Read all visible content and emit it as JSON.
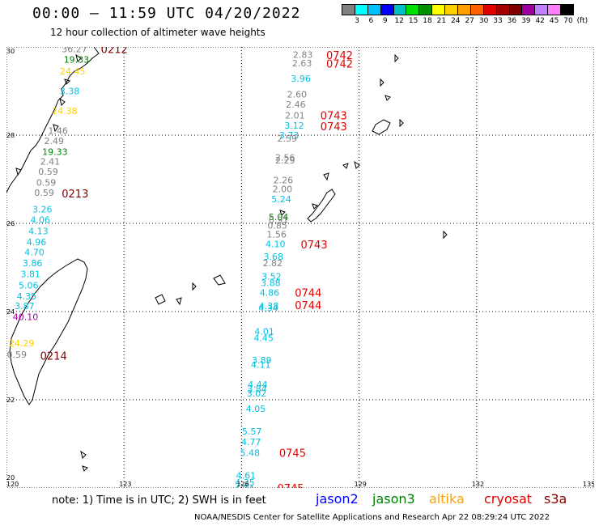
{
  "header": {
    "title": "00:00 – 11:59 UTC 04/20/2022",
    "subtitle": "12 hour collection of altimeter wave heights"
  },
  "colorbar": {
    "colors": [
      "#808080",
      "#00ffff",
      "#00bfff",
      "#0000ff",
      "#00c0c0",
      "#00e000",
      "#009000",
      "#ffff00",
      "#ffd000",
      "#ffa000",
      "#ff6000",
      "#e00000",
      "#a00000",
      "#800000",
      "#a000a0",
      "#c080ff",
      "#ff80ff",
      "#000000"
    ],
    "labels": [
      "3",
      "6",
      "9",
      "12",
      "15",
      "18",
      "21",
      "24",
      "27",
      "30",
      "33",
      "36",
      "39",
      "42",
      "45",
      "70",
      "(ft)"
    ]
  },
  "axes": {
    "lon_labels": [
      "120",
      "123",
      "126",
      "129",
      "132",
      "135"
    ],
    "lat_labels": [
      "30",
      "28",
      "26",
      "24",
      "22",
      "20"
    ]
  },
  "observations": [
    {
      "text": "36.27",
      "lon": 121.7,
      "lat": 29.95,
      "color": "#808080"
    },
    {
      "text": "19.33",
      "lon": 121.75,
      "lat": 29.72,
      "color": "#008000"
    },
    {
      "text": "24.45",
      "lon": 121.65,
      "lat": 29.45,
      "color": "#ffd000"
    },
    {
      "text": "3.38",
      "lon": 121.65,
      "lat": 29.0,
      "color": "#00c0e0"
    },
    {
      "text": "24.38",
      "lon": 121.45,
      "lat": 28.55,
      "color": "#ffd000"
    },
    {
      "text": "1.46",
      "lon": 121.35,
      "lat": 28.1,
      "color": "#808080"
    },
    {
      "text": "2.49",
      "lon": 121.25,
      "lat": 27.87,
      "color": "#808080"
    },
    {
      "text": "19.33",
      "lon": 121.2,
      "lat": 27.62,
      "color": "#008000"
    },
    {
      "text": "2.41",
      "lon": 121.15,
      "lat": 27.4,
      "color": "#808080"
    },
    {
      "text": "0.59",
      "lon": 121.1,
      "lat": 27.17,
      "color": "#808080"
    },
    {
      "text": "0.59",
      "lon": 121.05,
      "lat": 26.93,
      "color": "#808080"
    },
    {
      "text": "0.59",
      "lon": 121.0,
      "lat": 26.7,
      "color": "#808080"
    },
    {
      "text": "3.26",
      "lon": 120.95,
      "lat": 26.32,
      "color": "#00c0e0"
    },
    {
      "text": "4.06",
      "lon": 120.9,
      "lat": 26.08,
      "color": "#00c0e0"
    },
    {
      "text": "4.13",
      "lon": 120.85,
      "lat": 25.83,
      "color": "#00c0e0"
    },
    {
      "text": "4.96",
      "lon": 120.8,
      "lat": 25.58,
      "color": "#00c0e0"
    },
    {
      "text": "4.70",
      "lon": 120.75,
      "lat": 25.35,
      "color": "#00c0e0"
    },
    {
      "text": "3.86",
      "lon": 120.7,
      "lat": 25.1,
      "color": "#00c0e0"
    },
    {
      "text": "3.81",
      "lon": 120.65,
      "lat": 24.85,
      "color": "#00c0e0"
    },
    {
      "text": "5.06",
      "lon": 120.6,
      "lat": 24.6,
      "color": "#00c0e0"
    },
    {
      "text": "4.35",
      "lon": 120.55,
      "lat": 24.35,
      "color": "#00c0e0"
    },
    {
      "text": "3.87",
      "lon": 120.5,
      "lat": 24.13,
      "color": "#00c0e0"
    },
    {
      "text": "40.10",
      "lon": 120.45,
      "lat": 23.88,
      "color": "#a000a0"
    },
    {
      "text": "24.29",
      "lon": 120.35,
      "lat": 23.28,
      "color": "#ffd000"
    },
    {
      "text": "0.59",
      "lon": 120.3,
      "lat": 23.03,
      "color": "#808080"
    },
    {
      "text": "2.83",
      "lon": 127.6,
      "lat": 29.83,
      "color": "#808080"
    },
    {
      "text": "2.63",
      "lon": 127.58,
      "lat": 29.63,
      "color": "#808080"
    },
    {
      "text": "3.96",
      "lon": 127.55,
      "lat": 29.28,
      "color": "#00c0e0"
    },
    {
      "text": "2.60",
      "lon": 127.45,
      "lat": 28.93,
      "color": "#808080"
    },
    {
      "text": "2.46",
      "lon": 127.42,
      "lat": 28.7,
      "color": "#808080"
    },
    {
      "text": "2.01",
      "lon": 127.4,
      "lat": 28.45,
      "color": "#808080"
    },
    {
      "text": "3.12",
      "lon": 127.38,
      "lat": 28.22,
      "color": "#00c0e0"
    },
    {
      "text": "3.73",
      "lon": 127.25,
      "lat": 28.0,
      "color": "#00c0e0"
    },
    {
      "text": "2.59",
      "lon": 127.2,
      "lat": 27.93,
      "color": "#808080"
    },
    {
      "text": "2.56",
      "lon": 127.15,
      "lat": 27.5,
      "color": "#808080"
    },
    {
      "text": "2.29",
      "lon": 127.15,
      "lat": 27.43,
      "color": "#808080"
    },
    {
      "text": "2.26",
      "lon": 127.1,
      "lat": 26.98,
      "color": "#808080"
    },
    {
      "text": "2.00",
      "lon": 127.08,
      "lat": 26.78,
      "color": "#808080"
    },
    {
      "text": "5.24",
      "lon": 127.05,
      "lat": 26.55,
      "color": "#00c0e0"
    },
    {
      "text": "5.04",
      "lon": 126.98,
      "lat": 26.15,
      "color": "#008000"
    },
    {
      "text": "0.91",
      "lon": 126.98,
      "lat": 26.08,
      "color": "#808080"
    },
    {
      "text": "0.85",
      "lon": 126.95,
      "lat": 25.95,
      "color": "#808080"
    },
    {
      "text": "1.56",
      "lon": 126.93,
      "lat": 25.75,
      "color": "#808080"
    },
    {
      "text": "4.10",
      "lon": 126.9,
      "lat": 25.53,
      "color": "#00c0e0"
    },
    {
      "text": "3.68",
      "lon": 126.85,
      "lat": 25.25,
      "color": "#00c0e0"
    },
    {
      "text": "2.82",
      "lon": 126.83,
      "lat": 25.1,
      "color": "#808080"
    },
    {
      "text": "3.52",
      "lon": 126.8,
      "lat": 24.8,
      "color": "#00c0e0"
    },
    {
      "text": "3.88",
      "lon": 126.78,
      "lat": 24.65,
      "color": "#00c0e0"
    },
    {
      "text": "4.86",
      "lon": 126.75,
      "lat": 24.43,
      "color": "#00c0e0"
    },
    {
      "text": "4.38",
      "lon": 126.73,
      "lat": 24.13,
      "color": "#00c0e0"
    },
    {
      "text": "4.34",
      "lon": 126.72,
      "lat": 24.08,
      "color": "#00c0e0"
    },
    {
      "text": "4.01",
      "lon": 126.62,
      "lat": 23.55,
      "color": "#00c0e0"
    },
    {
      "text": "4.45",
      "lon": 126.6,
      "lat": 23.4,
      "color": "#00c0e0"
    },
    {
      "text": "3.89",
      "lon": 126.55,
      "lat": 22.9,
      "color": "#00c0e0"
    },
    {
      "text": "4.11",
      "lon": 126.53,
      "lat": 22.8,
      "color": "#00c0e0"
    },
    {
      "text": "4.44",
      "lon": 126.45,
      "lat": 22.35,
      "color": "#00c0e0"
    },
    {
      "text": "3.84",
      "lon": 126.43,
      "lat": 22.25,
      "color": "#00c0e0"
    },
    {
      "text": "3.02",
      "lon": 126.42,
      "lat": 22.15,
      "color": "#00c0e0"
    },
    {
      "text": "4.05",
      "lon": 126.4,
      "lat": 21.8,
      "color": "#00c0e0"
    },
    {
      "text": "5.57",
      "lon": 126.3,
      "lat": 21.28,
      "color": "#00c0e0"
    },
    {
      "text": "4.77",
      "lon": 126.28,
      "lat": 21.05,
      "color": "#00c0e0"
    },
    {
      "text": "5.48",
      "lon": 126.25,
      "lat": 20.8,
      "color": "#00c0e0"
    },
    {
      "text": "4.61",
      "lon": 126.15,
      "lat": 20.28,
      "color": "#00c0e0"
    },
    {
      "text": "4.35",
      "lon": 126.12,
      "lat": 20.13,
      "color": "#00c0e0"
    },
    {
      "text": "4.24",
      "lon": 126.1,
      "lat": 19.98,
      "color": "#00c0e0"
    },
    {
      "text": "4.51",
      "lon": 126.08,
      "lat": 19.85,
      "color": "#00c0e0"
    }
  ],
  "time_labels": [
    {
      "text": "0212",
      "lon": 122.7,
      "lat": 29.95,
      "color": "#800000"
    },
    {
      "text": "0742",
      "lon": 128.45,
      "lat": 29.82,
      "color": "#e00000"
    },
    {
      "text": "0742",
      "lon": 128.45,
      "lat": 29.62,
      "color": "#e00000"
    },
    {
      "text": "0743",
      "lon": 128.3,
      "lat": 28.45,
      "color": "#e00000"
    },
    {
      "text": "0743",
      "lon": 128.3,
      "lat": 28.2,
      "color": "#e00000"
    },
    {
      "text": "0213",
      "lon": 121.7,
      "lat": 26.68,
      "color": "#800000"
    },
    {
      "text": "0743",
      "lon": 127.8,
      "lat": 25.52,
      "color": "#e00000"
    },
    {
      "text": "0744",
      "lon": 127.65,
      "lat": 24.43,
      "color": "#e00000"
    },
    {
      "text": "0744",
      "lon": 127.65,
      "lat": 24.15,
      "color": "#e00000"
    },
    {
      "text": "0214",
      "lon": 121.15,
      "lat": 23.0,
      "color": "#800000"
    },
    {
      "text": "0745",
      "lon": 127.25,
      "lat": 20.8,
      "color": "#e00000"
    },
    {
      "text": "0745",
      "lon": 127.2,
      "lat": 20.0,
      "color": "#e00000"
    }
  ],
  "footer": {
    "note": "note: 1) Time is in UTC; 2) SWH is in feet",
    "credit": "NOAA/NESDIS Center for Satellite Applications and Research    Apr 22 08:29:24 UTC 2022",
    "legend": [
      {
        "label": "jason2",
        "color": "#0000ff"
      },
      {
        "label": "jason3",
        "color": "#008000"
      },
      {
        "label": "altika",
        "color": "#ffa000"
      },
      {
        "label": "cryosat",
        "color": "#e00000"
      },
      {
        "label": "s3a",
        "color": "#800000"
      }
    ]
  }
}
